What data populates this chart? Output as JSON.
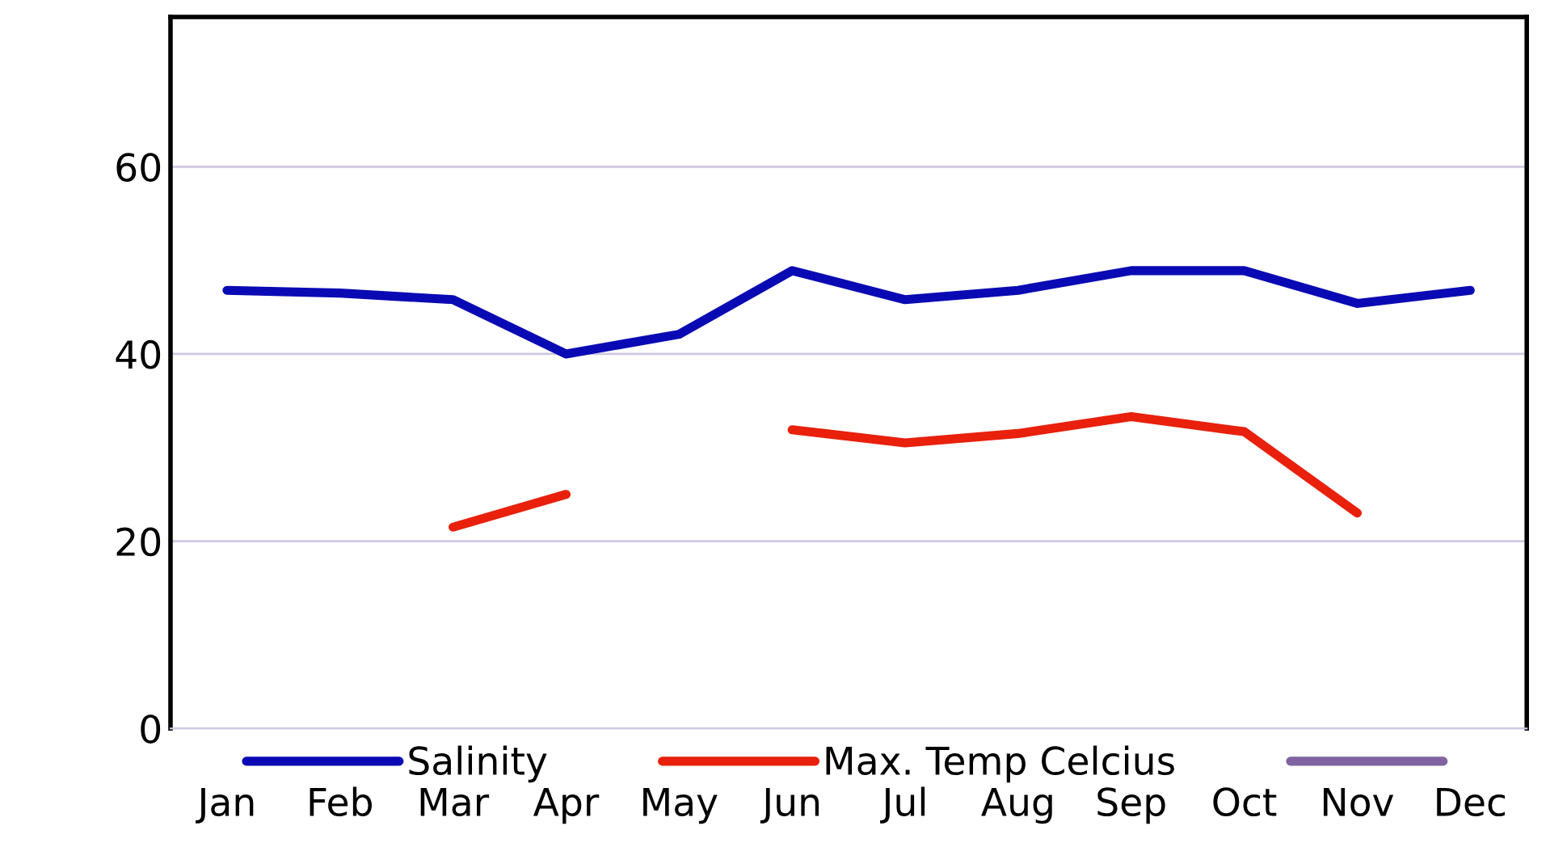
{
  "chart_data": {
    "type": "line",
    "categories": [
      "Jan",
      "Feb",
      "Mar",
      "Apr",
      "May",
      "Jun",
      "Jul",
      "Aug",
      "Sep",
      "Oct",
      "Nov",
      "Dec"
    ],
    "series": [
      {
        "name": "Salinity",
        "color": "#0a0ab4",
        "values": [
          46.8,
          46.5,
          45.8,
          40,
          42.1,
          48.9,
          45.8,
          46.8,
          48.9,
          48.9,
          45.4,
          46.8
        ]
      },
      {
        "name": "Max. Temp Celcius",
        "color": "#e8200c",
        "values": [
          null,
          null,
          21.5,
          25,
          null,
          31.9,
          30.5,
          31.5,
          33.3,
          31.7,
          23,
          null
        ]
      },
      {
        "color": "#8064a2",
        "values": [
          null,
          null,
          null,
          null,
          null,
          null,
          null,
          null,
          null,
          null,
          null,
          null
        ]
      }
    ],
    "ylim": [
      0,
      76
    ],
    "yticks": [
      0,
      20,
      40,
      60
    ],
    "grid": "y",
    "legend": "bottom",
    "marker": "none",
    "line_style": "solid"
  }
}
